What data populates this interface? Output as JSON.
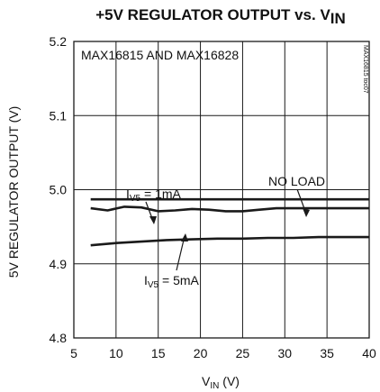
{
  "chart_data": {
    "type": "line",
    "title": {
      "main": "+5V REGULATOR OUTPUT vs. V",
      "sub": "IN"
    },
    "subtitle": "MAX16815 AND MAX16828",
    "watermark": "MAX16815 toc07",
    "xlabel": {
      "main": "V",
      "sub": "IN",
      "unit": " (V)"
    },
    "ylabel": "5V REGULATOR OUTPUT (V)",
    "xlim": [
      5,
      40
    ],
    "ylim": [
      4.8,
      5.2
    ],
    "x_ticks": [
      "5",
      "10",
      "15",
      "20",
      "25",
      "30",
      "35",
      "40"
    ],
    "y_ticks": [
      "4.8",
      "4.9",
      "5.0",
      "5.1",
      "5.2"
    ],
    "grid": true,
    "series": [
      {
        "name": "NO LOAD",
        "x": [
          7,
          10,
          15,
          20,
          25,
          30,
          35,
          40
        ],
        "y": [
          4.987,
          4.987,
          4.987,
          4.987,
          4.987,
          4.987,
          4.987,
          4.987
        ]
      },
      {
        "name": "I_V5 = 1mA",
        "x": [
          7,
          9,
          11,
          13,
          15,
          17,
          19,
          21,
          23,
          25,
          27,
          29,
          31,
          33,
          35,
          37,
          40
        ],
        "y": [
          4.975,
          4.972,
          4.977,
          4.976,
          4.971,
          4.972,
          4.974,
          4.973,
          4.971,
          4.971,
          4.973,
          4.975,
          4.975,
          4.975,
          4.975,
          4.975,
          4.975
        ]
      },
      {
        "name": "I_V5 = 5mA",
        "x": [
          7,
          10,
          13,
          16,
          19,
          22,
          25,
          28,
          31,
          34,
          37,
          40
        ],
        "y": [
          4.925,
          4.928,
          4.93,
          4.932,
          4.933,
          4.934,
          4.934,
          4.935,
          4.935,
          4.936,
          4.936,
          4.936
        ]
      }
    ],
    "annotations": {
      "no_load": "NO LOAD",
      "i1": {
        "main": "I",
        "sub": "V5",
        "rest": " = 1mA"
      },
      "i5": {
        "main": "I",
        "sub": "V5",
        "rest": " = 5mA"
      }
    },
    "colors": {
      "line": "#1a1a1a",
      "grid": "#1a1a1a"
    }
  }
}
